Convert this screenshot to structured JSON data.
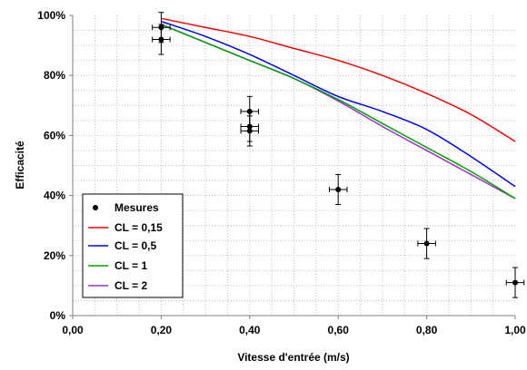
{
  "chart_data": {
    "type": "line",
    "xlabel": "Vitesse d'entrée (m/s)",
    "ylabel": "Efficacité",
    "xlim": [
      0,
      1
    ],
    "ylim": [
      0,
      100
    ],
    "x_ticks": [
      "0,00",
      "0,20",
      "0,40",
      "0,60",
      "0,80",
      "1,00"
    ],
    "y_ticks": [
      "0%",
      "20%",
      "40%",
      "60%",
      "80%",
      "100%"
    ],
    "grid": true,
    "legend_position": "bottom-left",
    "measurements": {
      "name": "Mesures",
      "color": "#000000",
      "points": [
        {
          "x": 0.2,
          "y": 96,
          "yerr": 5,
          "xerr": 0.02
        },
        {
          "x": 0.2,
          "y": 92,
          "yerr": 5,
          "xerr": 0.02
        },
        {
          "x": 0.4,
          "y": 68,
          "yerr": 5,
          "xerr": 0.02
        },
        {
          "x": 0.4,
          "y": 63,
          "yerr": 5,
          "xerr": 0.02
        },
        {
          "x": 0.4,
          "y": 61.5,
          "yerr": 5,
          "xerr": 0.02
        },
        {
          "x": 0.6,
          "y": 42,
          "yerr": 5,
          "xerr": 0.02
        },
        {
          "x": 0.8,
          "y": 24,
          "yerr": 5,
          "xerr": 0.02
        },
        {
          "x": 1.0,
          "y": 11,
          "yerr": 5,
          "xerr": 0.02
        }
      ]
    },
    "series": [
      {
        "name": "CL = 0,15",
        "color": "#ff0000",
        "x": [
          0.2,
          0.3,
          0.4,
          0.5,
          0.6,
          0.7,
          0.8,
          0.9,
          1.0
        ],
        "y": [
          99,
          96,
          93,
          89,
          85,
          80,
          74,
          67,
          58
        ]
      },
      {
        "name": "CL = 0,5",
        "color": "#0000ff",
        "x": [
          0.2,
          0.3,
          0.4,
          0.5,
          0.6,
          0.7,
          0.8,
          0.9,
          1.0
        ],
        "y": [
          98,
          93,
          87,
          80,
          73,
          68,
          62,
          53,
          43
        ]
      },
      {
        "name": "CL = 1",
        "color": "#00a000",
        "x": [
          0.2,
          0.3,
          0.4,
          0.5,
          0.6,
          0.7,
          0.8,
          0.9,
          1.0
        ],
        "y": [
          97,
          91,
          85,
          79,
          72,
          64,
          56,
          48,
          39
        ]
      },
      {
        "name": "CL = 2",
        "color": "#9933cc",
        "x": [
          0.2,
          0.3,
          0.4,
          0.5,
          0.6,
          0.7,
          0.8,
          0.9,
          1.0
        ],
        "y": [
          97,
          91,
          85,
          79,
          71.5,
          63,
          55,
          47,
          39
        ]
      }
    ]
  }
}
